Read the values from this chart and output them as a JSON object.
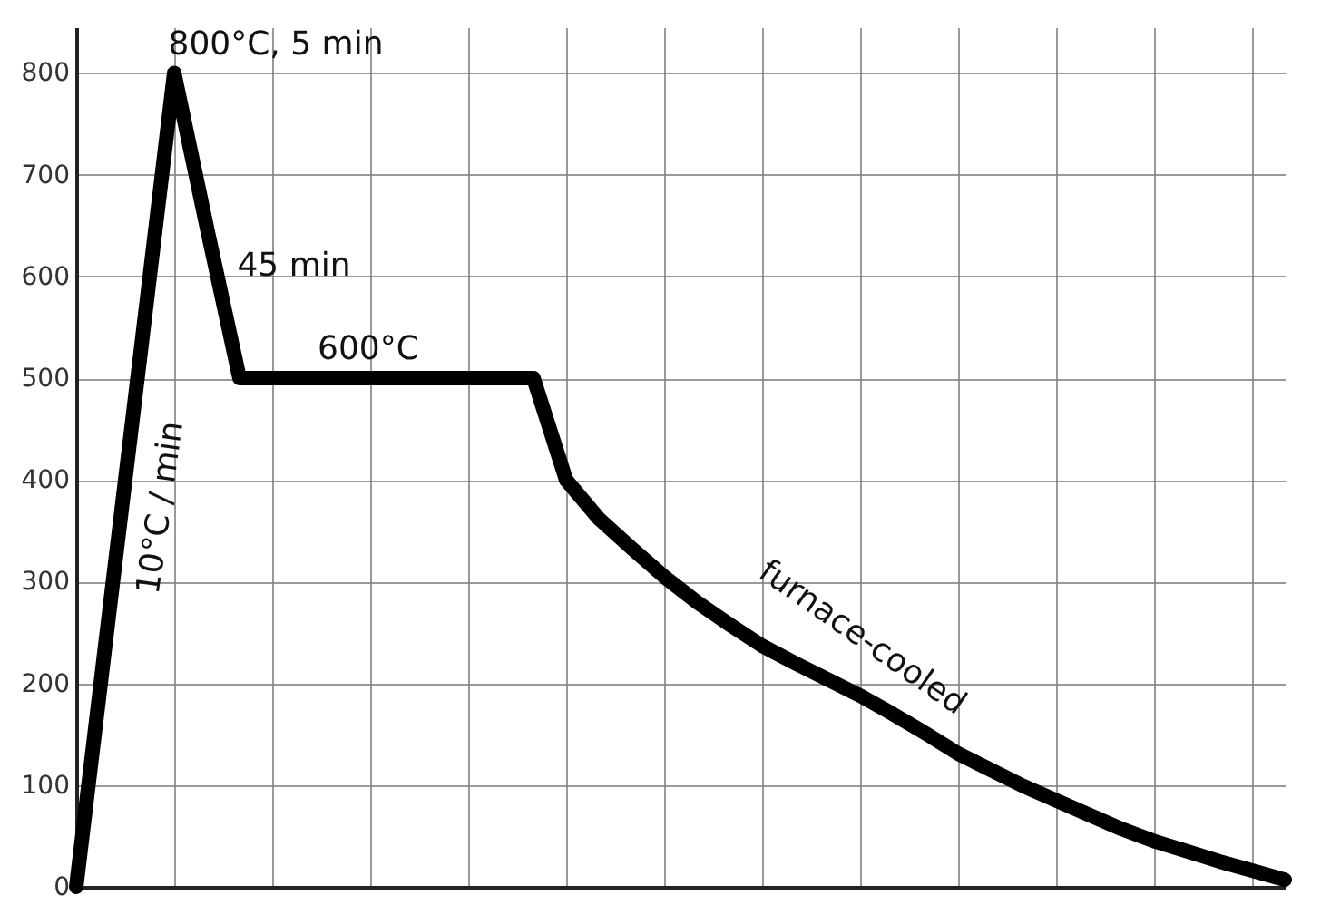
{
  "chart_data": {
    "type": "line",
    "categories": [
      null,
      null,
      null,
      null,
      null,
      null,
      null,
      null,
      null,
      null,
      null,
      null,
      null,
      null,
      null,
      null,
      null,
      null,
      null,
      null,
      null,
      null,
      null,
      null,
      null,
      null,
      null,
      null,
      null,
      null,
      null,
      null,
      null,
      null,
      null,
      null,
      null,
      null
    ],
    "series": [
      {
        "color": "#000000",
        "values": [
          0,
          267,
          533,
          800,
          648,
          500,
          500,
          500,
          500,
          500,
          500,
          500,
          500,
          500,
          500,
          400,
          362,
          333,
          305,
          280,
          258,
          237,
          220,
          204,
          188,
          170,
          151,
          131,
          115,
          99,
          85,
          71,
          57,
          45,
          35,
          25,
          16,
          7
        ]
      }
    ],
    "ylim": [
      0,
      845
    ],
    "yticks": [
      0,
      100,
      200,
      300,
      400,
      500,
      600,
      700,
      800
    ],
    "grid": true,
    "tick_labels": "y",
    "line_style": "solid",
    "marker": "none",
    "annotations": [
      "800°C, 5 min",
      "45 min",
      "600°C",
      "10°C / min",
      "furnace-cooled"
    ]
  }
}
